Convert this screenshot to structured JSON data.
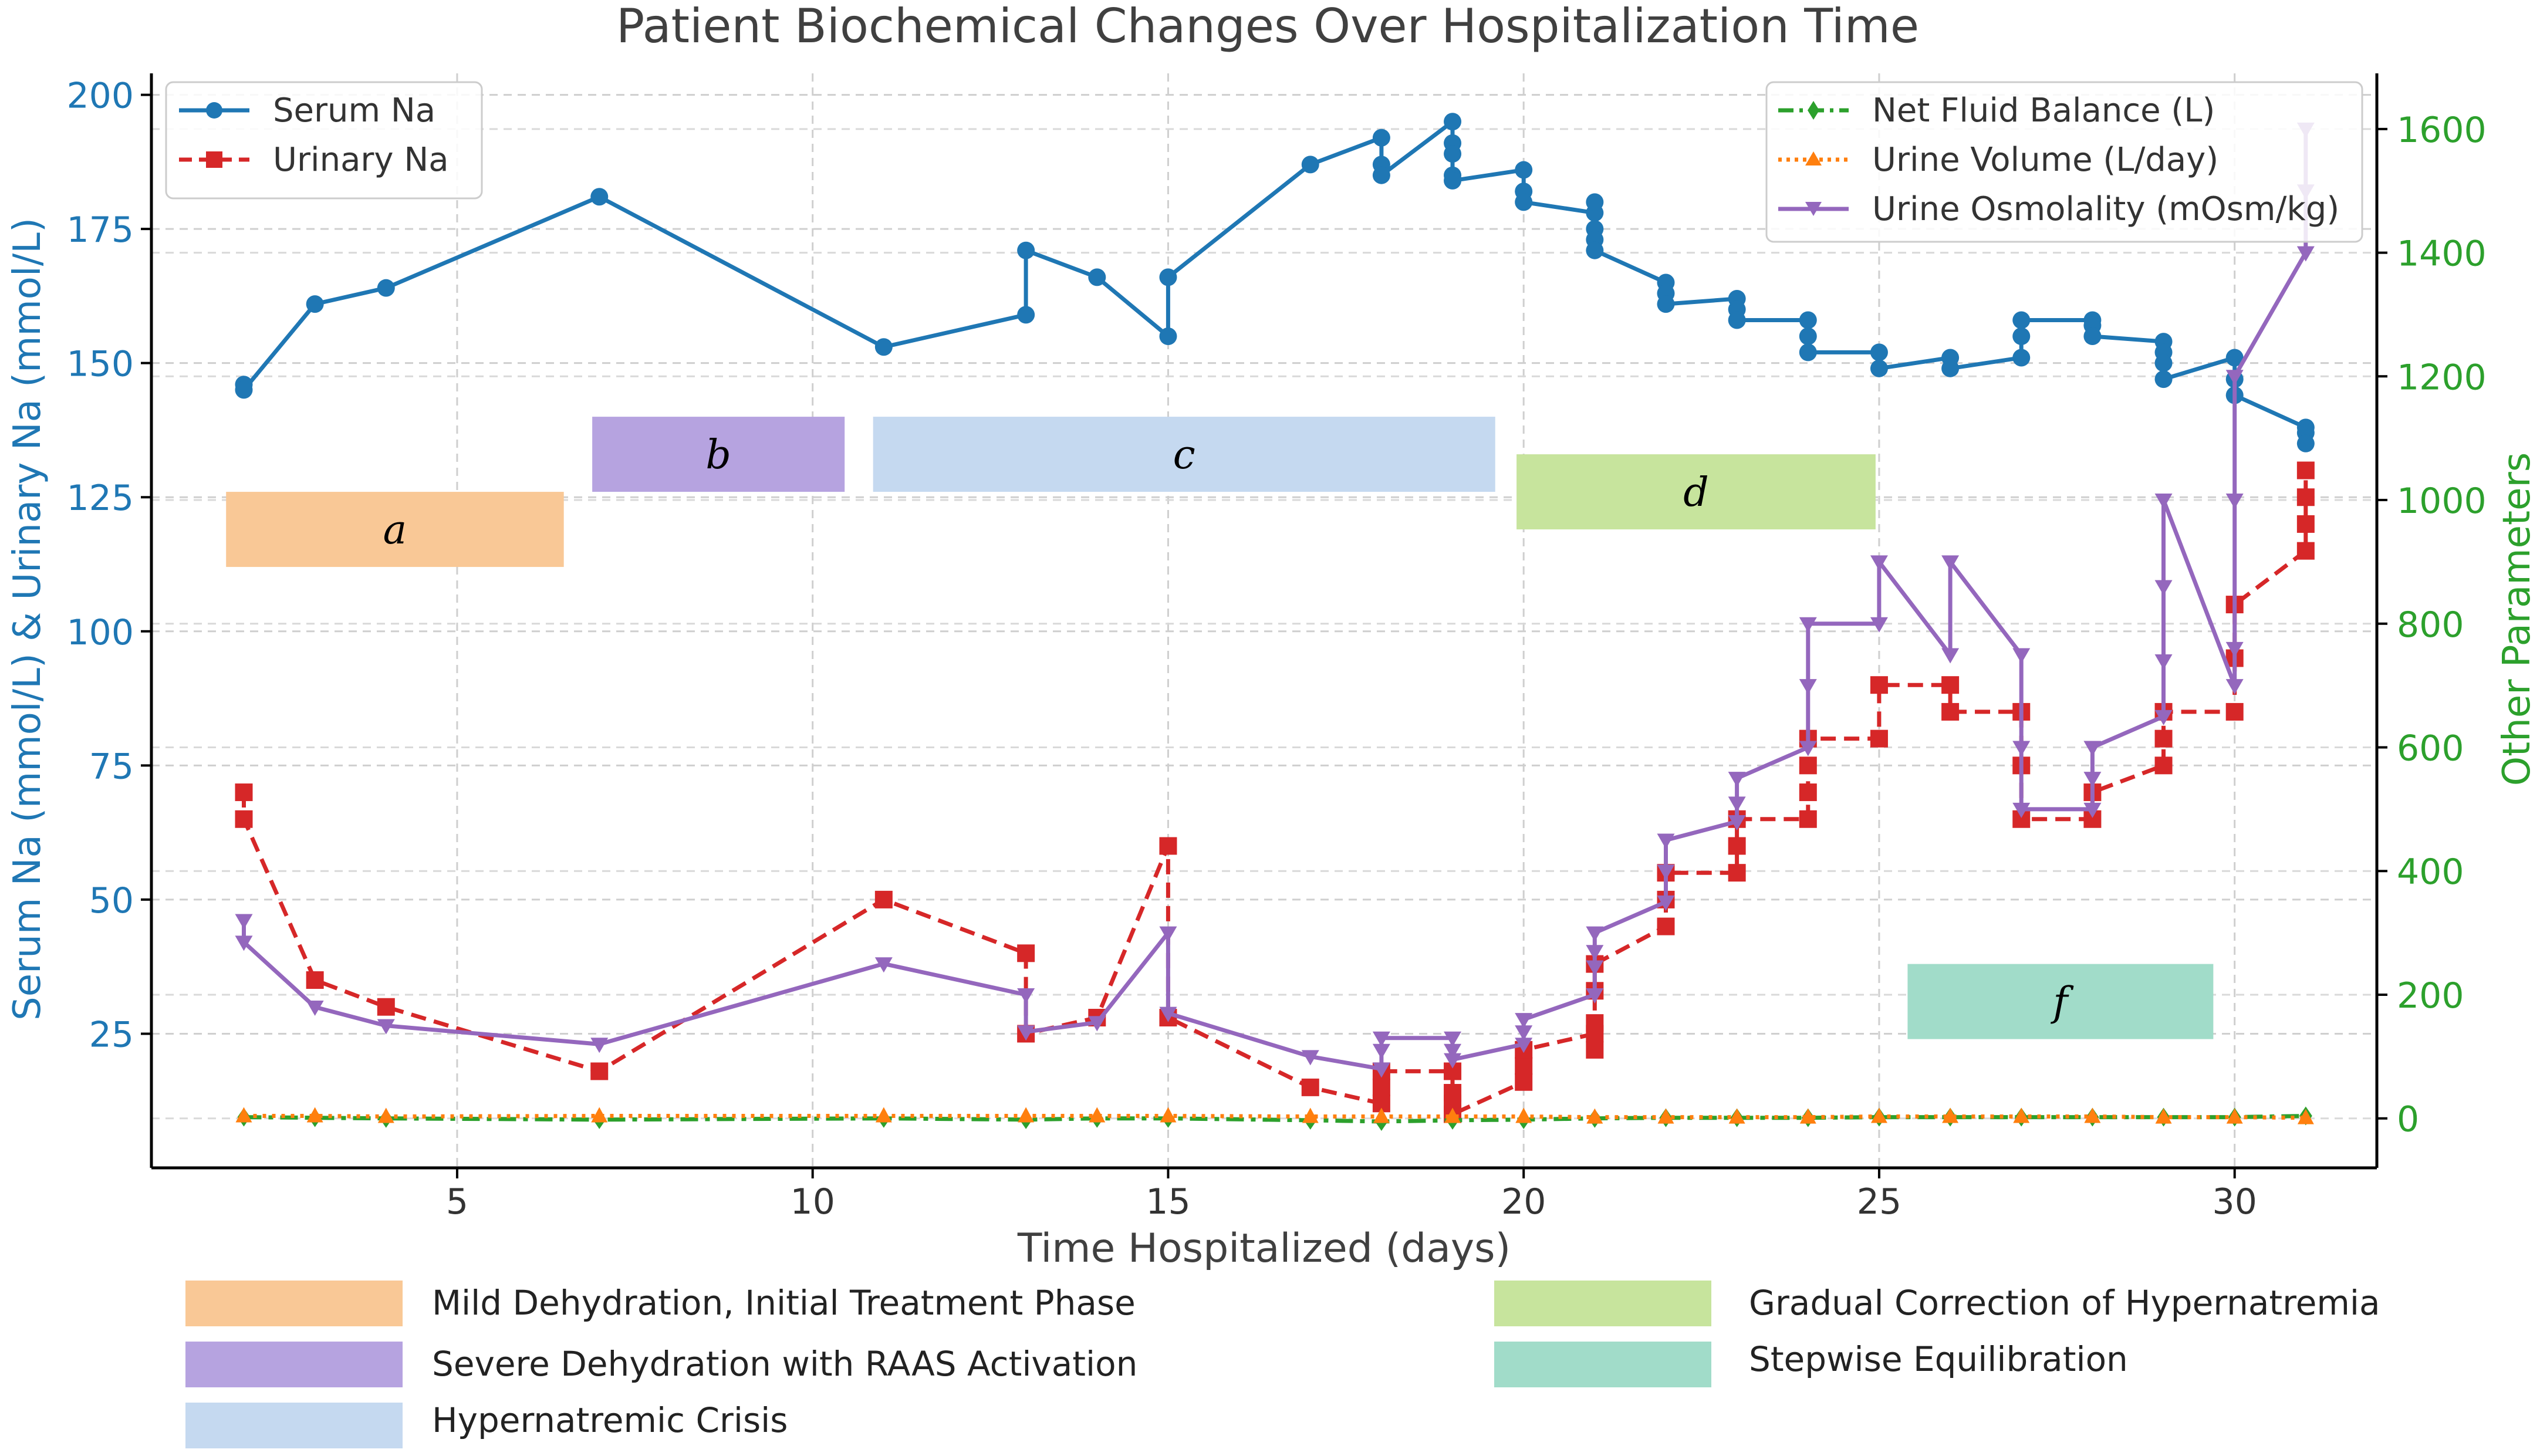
{
  "chart_data": {
    "type": "line",
    "title": "Patient Biochemical Changes Over Hospitalization Time",
    "xlabel": "Time Hospitalized (days)",
    "ylabel_left": "Serum Na (mmol/L) & Urinary Na (mmol/L)",
    "ylabel_right": "Other Parameters",
    "xlim": [
      0.7,
      32.0
    ],
    "ylim_left": [
      0,
      204
    ],
    "ylim_right": [
      -80,
      1690
    ],
    "x_ticks": [
      5,
      10,
      15,
      20,
      25,
      30
    ],
    "y_ticks_left": [
      25,
      50,
      75,
      100,
      125,
      150,
      175,
      200
    ],
    "y_ticks_right": [
      0,
      200,
      400,
      600,
      800,
      1000,
      1200,
      1400,
      1600
    ],
    "grid": true,
    "legend_left_position": "top-left",
    "legend_right_position": "top-right",
    "series": [
      {
        "name": "Serum Na",
        "axis": "left",
        "color": "#1f77b4",
        "style": "solid",
        "marker": "circle",
        "points": [
          [
            2,
            146
          ],
          [
            2,
            145
          ],
          [
            3,
            161
          ],
          [
            4,
            164
          ],
          [
            7,
            181
          ],
          [
            11,
            153
          ],
          [
            13,
            159
          ],
          [
            13,
            171
          ],
          [
            14,
            166
          ],
          [
            15,
            155
          ],
          [
            15,
            166
          ],
          [
            17,
            187
          ],
          [
            18,
            192
          ],
          [
            18,
            187
          ],
          [
            18,
            185
          ],
          [
            19,
            195
          ],
          [
            19,
            191
          ],
          [
            19,
            189
          ],
          [
            19,
            185
          ],
          [
            19,
            184
          ],
          [
            20,
            186
          ],
          [
            20,
            182
          ],
          [
            20,
            180
          ],
          [
            21,
            178
          ],
          [
            21,
            180
          ],
          [
            21,
            175
          ],
          [
            21,
            173
          ],
          [
            21,
            171
          ],
          [
            22,
            165
          ],
          [
            22,
            163
          ],
          [
            22,
            161
          ],
          [
            23,
            162
          ],
          [
            23,
            160
          ],
          [
            23,
            158
          ],
          [
            24,
            158
          ],
          [
            24,
            155
          ],
          [
            24,
            152
          ],
          [
            25,
            152
          ],
          [
            25,
            149
          ],
          [
            26,
            151
          ],
          [
            26,
            149
          ],
          [
            27,
            151
          ],
          [
            27,
            155
          ],
          [
            27,
            158
          ],
          [
            28,
            158
          ],
          [
            28,
            157
          ],
          [
            28,
            155
          ],
          [
            29,
            154
          ],
          [
            29,
            152
          ],
          [
            29,
            150
          ],
          [
            29,
            147
          ],
          [
            30,
            151
          ],
          [
            30,
            147
          ],
          [
            30,
            144
          ],
          [
            31,
            138
          ],
          [
            31,
            137
          ],
          [
            31,
            135
          ]
        ]
      },
      {
        "name": "Urinary Na",
        "axis": "left",
        "color": "#d62728",
        "style": "dashed",
        "marker": "square",
        "points": [
          [
            2,
            70
          ],
          [
            2,
            65
          ],
          [
            3,
            35
          ],
          [
            4,
            30
          ],
          [
            7,
            18
          ],
          [
            11,
            50
          ],
          [
            13,
            40
          ],
          [
            13,
            25
          ],
          [
            14,
            28
          ],
          [
            15,
            60
          ],
          [
            15,
            28
          ],
          [
            17,
            15
          ],
          [
            18,
            12
          ],
          [
            18,
            15
          ],
          [
            18,
            18
          ],
          [
            19,
            18
          ],
          [
            19,
            14
          ],
          [
            19,
            12
          ],
          [
            19,
            10
          ],
          [
            20,
            16
          ],
          [
            20,
            19
          ],
          [
            20,
            22
          ],
          [
            21,
            25
          ],
          [
            21,
            22
          ],
          [
            21,
            27
          ],
          [
            21,
            33
          ],
          [
            21,
            38
          ],
          [
            22,
            45
          ],
          [
            22,
            50
          ],
          [
            22,
            55
          ],
          [
            23,
            55
          ],
          [
            23,
            60
          ],
          [
            23,
            65
          ],
          [
            24,
            65
          ],
          [
            24,
            70
          ],
          [
            24,
            75
          ],
          [
            24,
            80
          ],
          [
            25,
            80
          ],
          [
            25,
            90
          ],
          [
            26,
            90
          ],
          [
            26,
            85
          ],
          [
            27,
            85
          ],
          [
            27,
            75
          ],
          [
            27,
            65
          ],
          [
            28,
            65
          ],
          [
            28,
            70
          ],
          [
            29,
            75
          ],
          [
            29,
            80
          ],
          [
            29,
            85
          ],
          [
            30,
            85
          ],
          [
            30,
            95
          ],
          [
            30,
            105
          ],
          [
            31,
            115
          ],
          [
            31,
            120
          ],
          [
            31,
            125
          ],
          [
            31,
            130
          ]
        ]
      },
      {
        "name": "Net Fluid Balance (L)",
        "axis": "right",
        "color": "#2ca02c",
        "style": "dashdot",
        "marker": "diamond",
        "points": [
          [
            2,
            2
          ],
          [
            3,
            1
          ],
          [
            4,
            0
          ],
          [
            7,
            -2
          ],
          [
            11,
            0
          ],
          [
            13,
            -2
          ],
          [
            14,
            0
          ],
          [
            15,
            0
          ],
          [
            17,
            -3
          ],
          [
            18,
            -5
          ],
          [
            19,
            -3
          ],
          [
            20,
            -2
          ],
          [
            21,
            0
          ],
          [
            22,
            1
          ],
          [
            23,
            1
          ],
          [
            24,
            1
          ],
          [
            25,
            2
          ],
          [
            26,
            2
          ],
          [
            27,
            2
          ],
          [
            28,
            2
          ],
          [
            29,
            2
          ],
          [
            30,
            2
          ],
          [
            31,
            4
          ]
        ]
      },
      {
        "name": "Urine Volume (L/day)",
        "axis": "right",
        "color": "#ff7f0e",
        "style": "dotted",
        "marker": "triangle-up",
        "points": [
          [
            2,
            4
          ],
          [
            3,
            4
          ],
          [
            4,
            3
          ],
          [
            7,
            4
          ],
          [
            11,
            4
          ],
          [
            13,
            4
          ],
          [
            14,
            4
          ],
          [
            15,
            4
          ],
          [
            17,
            3
          ],
          [
            18,
            3
          ],
          [
            19,
            3
          ],
          [
            20,
            3
          ],
          [
            21,
            2
          ],
          [
            22,
            2
          ],
          [
            23,
            2
          ],
          [
            24,
            2
          ],
          [
            25,
            3
          ],
          [
            26,
            3
          ],
          [
            27,
            3
          ],
          [
            28,
            3
          ],
          [
            29,
            2
          ],
          [
            30,
            2
          ],
          [
            31,
            1
          ]
        ]
      },
      {
        "name": "Urine Osmolality (mOsm/kg)",
        "axis": "right",
        "color": "#9467bd",
        "style": "solid",
        "marker": "triangle-down",
        "points": [
          [
            2,
            320
          ],
          [
            2,
            285
          ],
          [
            3,
            180
          ],
          [
            4,
            150
          ],
          [
            7,
            120
          ],
          [
            11,
            250
          ],
          [
            13,
            200
          ],
          [
            13,
            140
          ],
          [
            14,
            155
          ],
          [
            15,
            300
          ],
          [
            15,
            170
          ],
          [
            17,
            100
          ],
          [
            18,
            80
          ],
          [
            18,
            110
          ],
          [
            18,
            130
          ],
          [
            19,
            130
          ],
          [
            19,
            110
          ],
          [
            19,
            95
          ],
          [
            20,
            120
          ],
          [
            20,
            140
          ],
          [
            20,
            160
          ],
          [
            21,
            200
          ],
          [
            21,
            245
          ],
          [
            21,
            270
          ],
          [
            21,
            300
          ],
          [
            22,
            350
          ],
          [
            22,
            400
          ],
          [
            22,
            450
          ],
          [
            23,
            480
          ],
          [
            23,
            510
          ],
          [
            23,
            550
          ],
          [
            24,
            600
          ],
          [
            24,
            700
          ],
          [
            24,
            800
          ],
          [
            25,
            800
          ],
          [
            25,
            900
          ],
          [
            26,
            750
          ],
          [
            26,
            900
          ],
          [
            27,
            750
          ],
          [
            27,
            600
          ],
          [
            27,
            500
          ],
          [
            28,
            500
          ],
          [
            28,
            550
          ],
          [
            28,
            600
          ],
          [
            29,
            650
          ],
          [
            29,
            740
          ],
          [
            29,
            860
          ],
          [
            29,
            1000
          ],
          [
            30,
            700
          ],
          [
            30,
            760
          ],
          [
            30,
            1000
          ],
          [
            30,
            1200
          ],
          [
            31,
            1400
          ],
          [
            31,
            1500
          ],
          [
            31,
            1600
          ]
        ]
      }
    ],
    "phases": [
      {
        "label": "a",
        "x0": 1.75,
        "x1": 6.5,
        "y0": 112,
        "y1": 126,
        "color": "#f9c896",
        "description": "Mild Dehydration, Initial Treatment Phase"
      },
      {
        "label": "b",
        "x0": 6.9,
        "x1": 10.45,
        "y0": 126,
        "y1": 140,
        "color": "#b6a3e0",
        "description": "Severe Dehydration with RAAS Activation"
      },
      {
        "label": "c",
        "x0": 10.85,
        "x1": 19.6,
        "y0": 126,
        "y1": 140,
        "color": "#c5d9f0",
        "description": "Hypernatremic Crisis"
      },
      {
        "label": "d",
        "x0": 19.9,
        "x1": 24.95,
        "y0": 119,
        "y1": 133,
        "color": "#c7e49d",
        "description": "Gradual Correction of Hypernatremia"
      },
      {
        "label": "f",
        "x0": 25.4,
        "x1": 29.7,
        "y0": 24,
        "y1": 38,
        "color": "#a1dcc9",
        "description": "Stepwise Equilibration"
      }
    ]
  }
}
